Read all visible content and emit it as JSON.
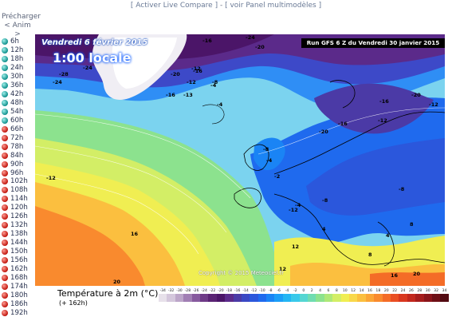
{
  "topbar": {
    "activate_live_compare": "[ Activer Live Compare ]",
    "separator": " - ",
    "view_multimodel_panel": "[ voir Panel multimodèles ]"
  },
  "sidebar": {
    "preload_label": "Précharger",
    "anim_label": "< Anim >",
    "steps": [
      {
        "label": "6h",
        "dot": "teal"
      },
      {
        "label": "12h",
        "dot": "teal"
      },
      {
        "label": "18h",
        "dot": "teal"
      },
      {
        "label": "24h",
        "dot": "teal"
      },
      {
        "label": "30h",
        "dot": "teal"
      },
      {
        "label": "36h",
        "dot": "teal"
      },
      {
        "label": "42h",
        "dot": "teal"
      },
      {
        "label": "48h",
        "dot": "teal"
      },
      {
        "label": "54h",
        "dot": "teal"
      },
      {
        "label": "60h",
        "dot": "teal"
      },
      {
        "label": "66h",
        "dot": "red"
      },
      {
        "label": "72h",
        "dot": "red"
      },
      {
        "label": "78h",
        "dot": "red"
      },
      {
        "label": "84h",
        "dot": "red"
      },
      {
        "label": "90h",
        "dot": "red"
      },
      {
        "label": "96h",
        "dot": "red"
      },
      {
        "label": "102h",
        "dot": "red"
      },
      {
        "label": "108h",
        "dot": "red"
      },
      {
        "label": "114h",
        "dot": "red"
      },
      {
        "label": "120h",
        "dot": "red"
      },
      {
        "label": "126h",
        "dot": "red"
      },
      {
        "label": "132h",
        "dot": "red"
      },
      {
        "label": "138h",
        "dot": "red"
      },
      {
        "label": "144h",
        "dot": "red"
      },
      {
        "label": "150h",
        "dot": "red"
      },
      {
        "label": "156h",
        "dot": "red"
      },
      {
        "label": "162h",
        "dot": "red"
      },
      {
        "label": "168h",
        "dot": "red"
      },
      {
        "label": "174h",
        "dot": "red"
      },
      {
        "label": "180h",
        "dot": "red"
      },
      {
        "label": "186h",
        "dot": "red"
      },
      {
        "label": "192h",
        "dot": "red"
      }
    ]
  },
  "map": {
    "date_text": "Vendredi 6 février 2015",
    "local_time": "1:00 locale",
    "run_text": "Run GFS 6 Z du Vendredi 30 janvier 2015",
    "copyright": "Copyright © 2015 Meteociel.fr",
    "contour_labels": [
      "-28",
      "-24",
      "-16",
      "-24",
      "-20",
      "-24",
      "-20",
      "-16",
      "-12",
      "-16",
      "-13",
      "-8",
      "-12",
      "-4",
      "-4",
      "-16",
      "-20",
      "-12",
      "-20",
      "-16",
      "-12",
      "-8",
      "-4",
      "-2",
      "-12",
      "-8",
      "-4",
      "-12",
      "-8",
      "4",
      "8",
      "12",
      "16",
      "20",
      "12",
      "8",
      "4",
      "16",
      "20"
    ]
  },
  "legend": {
    "title": "Température à 2m (°C)",
    "subtitle": "(+ 162h)",
    "scale": [
      {
        "v": "-34",
        "c": "#e7e1ea"
      },
      {
        "v": "-32",
        "c": "#d4c7dc"
      },
      {
        "v": "-30",
        "c": "#bca6c9"
      },
      {
        "v": "-28",
        "c": "#a17fb4"
      },
      {
        "v": "-26",
        "c": "#875a9e"
      },
      {
        "v": "-24",
        "c": "#6e3a87"
      },
      {
        "v": "-22",
        "c": "#5a2374"
      },
      {
        "v": "-20",
        "c": "#4b1568"
      },
      {
        "v": "-18",
        "c": "#5b2a8a"
      },
      {
        "v": "-16",
        "c": "#4b3aa6"
      },
      {
        "v": "-14",
        "c": "#3a48c4"
      },
      {
        "v": "-12",
        "c": "#2b57dc"
      },
      {
        "v": "-10",
        "c": "#1f6aee"
      },
      {
        "v": "-8",
        "c": "#1a84f5"
      },
      {
        "v": "-6",
        "c": "#1c9ef7"
      },
      {
        "v": "-4",
        "c": "#24b6f3"
      },
      {
        "v": "-2",
        "c": "#39c9ea"
      },
      {
        "v": "0",
        "c": "#55d6d2"
      },
      {
        "v": "2",
        "c": "#6fdcb1"
      },
      {
        "v": "4",
        "c": "#8ce28e"
      },
      {
        "v": "6",
        "c": "#aee878"
      },
      {
        "v": "8",
        "c": "#d3ee66"
      },
      {
        "v": "10",
        "c": "#f0ee52"
      },
      {
        "v": "12",
        "c": "#f9d84a"
      },
      {
        "v": "14",
        "c": "#fbbf3f"
      },
      {
        "v": "16",
        "c": "#fba536"
      },
      {
        "v": "18",
        "c": "#f98a2e"
      },
      {
        "v": "20",
        "c": "#f46c27"
      },
      {
        "v": "22",
        "c": "#ea4f23"
      },
      {
        "v": "24",
        "c": "#d9371f"
      },
      {
        "v": "26",
        "c": "#c2271d"
      },
      {
        "v": "28",
        "c": "#a61c1c"
      },
      {
        "v": "30",
        "c": "#8a141a"
      },
      {
        "v": "32",
        "c": "#6e0f16"
      },
      {
        "v": "34",
        "c": "#520a11"
      }
    ]
  }
}
